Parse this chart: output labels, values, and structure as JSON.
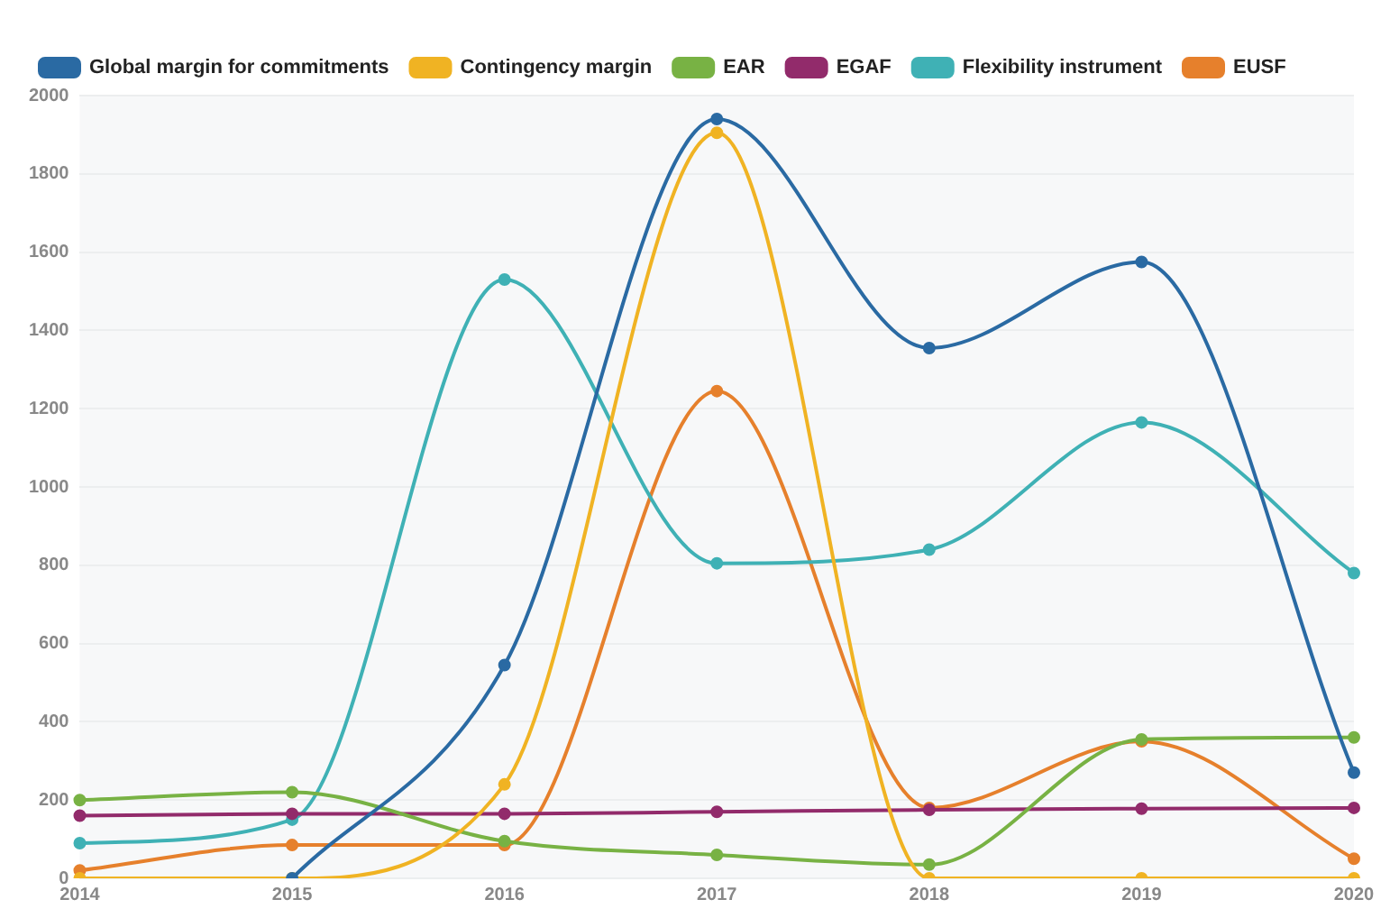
{
  "chart_data": {
    "type": "line",
    "categories": [
      "2014",
      "2015",
      "2016",
      "2017",
      "2018",
      "2019",
      "2020"
    ],
    "series": [
      {
        "name": "Global margin for commitments",
        "color": "#2a6aa3",
        "values": [
          null,
          0,
          545,
          1940,
          1355,
          1575,
          270
        ]
      },
      {
        "name": "Contingency margin",
        "color": "#f0b323",
        "values": [
          0,
          0,
          240,
          1905,
          0,
          0,
          0
        ]
      },
      {
        "name": "EAR",
        "color": "#78b244",
        "values": [
          200,
          220,
          95,
          60,
          35,
          355,
          360
        ]
      },
      {
        "name": "EGAF",
        "color": "#922b6b",
        "values": [
          160,
          165,
          165,
          170,
          175,
          178,
          180
        ]
      },
      {
        "name": "Flexibility instrument",
        "color": "#3fb1b5",
        "values": [
          90,
          150,
          1530,
          805,
          840,
          1165,
          780
        ]
      },
      {
        "name": "EUSF",
        "color": "#e6802c",
        "values": [
          20,
          85,
          85,
          1245,
          180,
          350,
          50
        ]
      }
    ],
    "ylim": [
      0,
      2000
    ],
    "yticks": [
      0,
      200,
      400,
      600,
      800,
      1000,
      1200,
      1400,
      1600,
      1800,
      2000
    ],
    "grid": "y",
    "legend": "top left",
    "marker": "circle",
    "line_style": "solid"
  }
}
